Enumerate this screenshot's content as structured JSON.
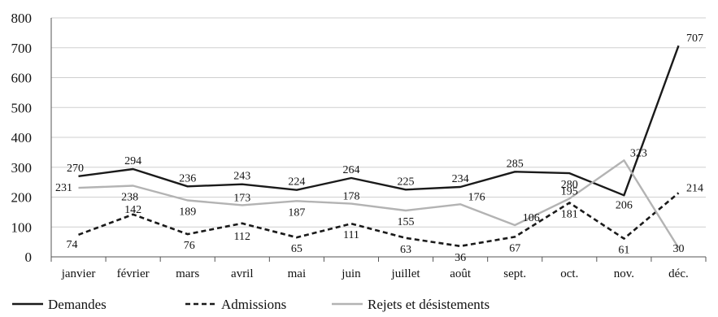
{
  "chart_data": {
    "type": "line",
    "title": "",
    "xlabel": "",
    "ylabel": "",
    "categories": [
      "janvier",
      "février",
      "mars",
      "avril",
      "mai",
      "juin",
      "juillet",
      "août",
      "sept.",
      "oct.",
      "nov.",
      "déc."
    ],
    "ylim": [
      0,
      800
    ],
    "yticks": [
      "0",
      "100",
      "200",
      "300",
      "400",
      "500",
      "600",
      "700",
      "800"
    ],
    "grid": true,
    "legend_position": "bottom",
    "series": [
      {
        "name": "Demandes",
        "color": "#1a1a1a",
        "style": "solid",
        "values": [
          270,
          294,
          236,
          243,
          224,
          264,
          225,
          234,
          285,
          280,
          206,
          707
        ],
        "labels": [
          "270",
          "294",
          "236",
          "243",
          "224",
          "264",
          "225",
          "234",
          "285",
          "280",
          "206",
          "707"
        ]
      },
      {
        "name": "Admissions",
        "color": "#1a1a1a",
        "style": "dashed",
        "values": [
          74,
          142,
          76,
          112,
          65,
          111,
          63,
          36,
          67,
          181,
          61,
          214
        ],
        "labels": [
          "74",
          "142",
          "76",
          "112",
          "65",
          "111",
          "63",
          "36",
          "67",
          "181",
          "61",
          "214"
        ]
      },
      {
        "name": "Rejets et désistements",
        "color": "#b3b3b3",
        "style": "solid",
        "values": [
          231,
          238,
          189,
          173,
          187,
          178,
          155,
          176,
          106,
          195,
          323,
          30
        ],
        "labels": [
          "231",
          "238",
          "189",
          "173",
          "187",
          "178",
          "155",
          "176",
          "106",
          "195",
          "323",
          "30"
        ]
      }
    ]
  }
}
